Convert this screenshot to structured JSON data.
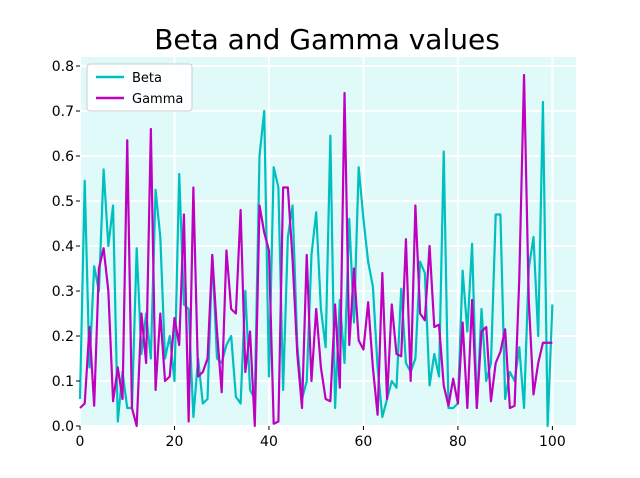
{
  "chart_data": {
    "type": "line",
    "title": "Beta and Gamma values",
    "xlabel": "",
    "ylabel": "",
    "xlim": [
      0,
      105
    ],
    "ylim": [
      0,
      0.82
    ],
    "xticks": [
      0,
      20,
      40,
      60,
      80,
      100
    ],
    "yticks": [
      0.0,
      0.1,
      0.2,
      0.3,
      0.4,
      0.5,
      0.6,
      0.7,
      0.8
    ],
    "xtick_labels": [
      "0",
      "20",
      "40",
      "60",
      "80",
      "100"
    ],
    "ytick_labels": [
      "0.0",
      "0.1",
      "0.2",
      "0.3",
      "0.4",
      "0.5",
      "0.6",
      "0.7",
      "0.8"
    ],
    "grid": true,
    "background": "#e0fafa",
    "grid_color": "#ffffff",
    "legend_position": "top-left",
    "series": [
      {
        "name": "Beta",
        "color": "#00bfbf",
        "x": [
          0,
          1,
          2,
          3,
          4,
          5,
          6,
          7,
          8,
          9,
          10,
          11,
          12,
          13,
          14,
          15,
          16,
          17,
          18,
          19,
          20,
          21,
          22,
          23,
          24,
          25,
          26,
          27,
          28,
          29,
          30,
          31,
          32,
          33,
          34,
          35,
          36,
          37,
          38,
          39,
          40,
          41,
          42,
          43,
          44,
          45,
          46,
          47,
          48,
          49,
          50,
          51,
          52,
          53,
          54,
          55,
          56,
          57,
          58,
          59,
          60,
          61,
          62,
          63,
          64,
          65,
          66,
          67,
          68,
          69,
          70,
          71,
          72,
          73,
          74,
          75,
          76,
          77,
          78,
          79,
          80,
          81,
          82,
          83,
          84,
          85,
          86,
          87,
          88,
          89,
          90,
          91,
          92,
          93,
          94,
          95,
          96,
          97,
          98,
          99,
          100
        ],
        "values": [
          0.06,
          0.545,
          0.13,
          0.355,
          0.3,
          0.57,
          0.4,
          0.49,
          0.01,
          0.12,
          0.04,
          0.04,
          0.395,
          0.16,
          0.25,
          0.15,
          0.525,
          0.42,
          0.15,
          0.2,
          0.1,
          0.56,
          0.27,
          0.26,
          0.02,
          0.15,
          0.05,
          0.06,
          0.38,
          0.15,
          0.14,
          0.18,
          0.2,
          0.065,
          0.05,
          0.3,
          0.08,
          0.06,
          0.6,
          0.7,
          0.11,
          0.575,
          0.53,
          0.08,
          0.42,
          0.49,
          0.18,
          0.06,
          0.1,
          0.38,
          0.475,
          0.26,
          0.175,
          0.645,
          0.04,
          0.28,
          0.14,
          0.46,
          0.23,
          0.575,
          0.46,
          0.365,
          0.31,
          0.13,
          0.02,
          0.06,
          0.1,
          0.085,
          0.305,
          0.14,
          0.12,
          0.15,
          0.365,
          0.34,
          0.09,
          0.16,
          0.11,
          0.61,
          0.04,
          0.04,
          0.05,
          0.345,
          0.21,
          0.405,
          0.04,
          0.26,
          0.1,
          0.14,
          0.47,
          0.47,
          0.06,
          0.12,
          0.1,
          0.175,
          0.04,
          0.35,
          0.42,
          0.2,
          0.72,
          0.0,
          0.27
        ]
      },
      {
        "name": "Gamma",
        "color": "#bf00bf",
        "x": [
          0,
          1,
          2,
          3,
          4,
          5,
          6,
          7,
          8,
          9,
          10,
          11,
          12,
          13,
          14,
          15,
          16,
          17,
          18,
          19,
          20,
          21,
          22,
          23,
          24,
          25,
          26,
          27,
          28,
          29,
          30,
          31,
          32,
          33,
          34,
          35,
          36,
          37,
          38,
          39,
          40,
          41,
          42,
          43,
          44,
          45,
          46,
          47,
          48,
          49,
          50,
          51,
          52,
          53,
          54,
          55,
          56,
          57,
          58,
          59,
          60,
          61,
          62,
          63,
          64,
          65,
          66,
          67,
          68,
          69,
          70,
          71,
          72,
          73,
          74,
          75,
          76,
          77,
          78,
          79,
          80,
          81,
          82,
          83,
          84,
          85,
          86,
          87,
          88,
          89,
          90,
          91,
          92,
          93,
          94,
          95,
          96,
          97,
          98,
          99,
          100
        ],
        "values": [
          0.04,
          0.05,
          0.22,
          0.045,
          0.35,
          0.395,
          0.3,
          0.055,
          0.13,
          0.06,
          0.635,
          0.04,
          0.0,
          0.25,
          0.14,
          0.66,
          0.08,
          0.25,
          0.1,
          0.11,
          0.24,
          0.18,
          0.47,
          0.01,
          0.53,
          0.11,
          0.12,
          0.15,
          0.38,
          0.21,
          0.075,
          0.39,
          0.26,
          0.25,
          0.48,
          0.12,
          0.21,
          0.0,
          0.49,
          0.43,
          0.39,
          0.005,
          0.01,
          0.53,
          0.53,
          0.37,
          0.16,
          0.04,
          0.38,
          0.1,
          0.26,
          0.13,
          0.06,
          0.055,
          0.27,
          0.085,
          0.74,
          0.18,
          0.35,
          0.19,
          0.17,
          0.275,
          0.13,
          0.025,
          0.34,
          0.06,
          0.27,
          0.16,
          0.155,
          0.415,
          0.1,
          0.49,
          0.25,
          0.235,
          0.4,
          0.22,
          0.225,
          0.09,
          0.045,
          0.105,
          0.05,
          0.23,
          0.04,
          0.28,
          0.04,
          0.21,
          0.22,
          0.055,
          0.14,
          0.165,
          0.215,
          0.04,
          0.045,
          0.33,
          0.78,
          0.28,
          0.07,
          0.14,
          0.185,
          0.185,
          0.185
        ]
      }
    ]
  }
}
